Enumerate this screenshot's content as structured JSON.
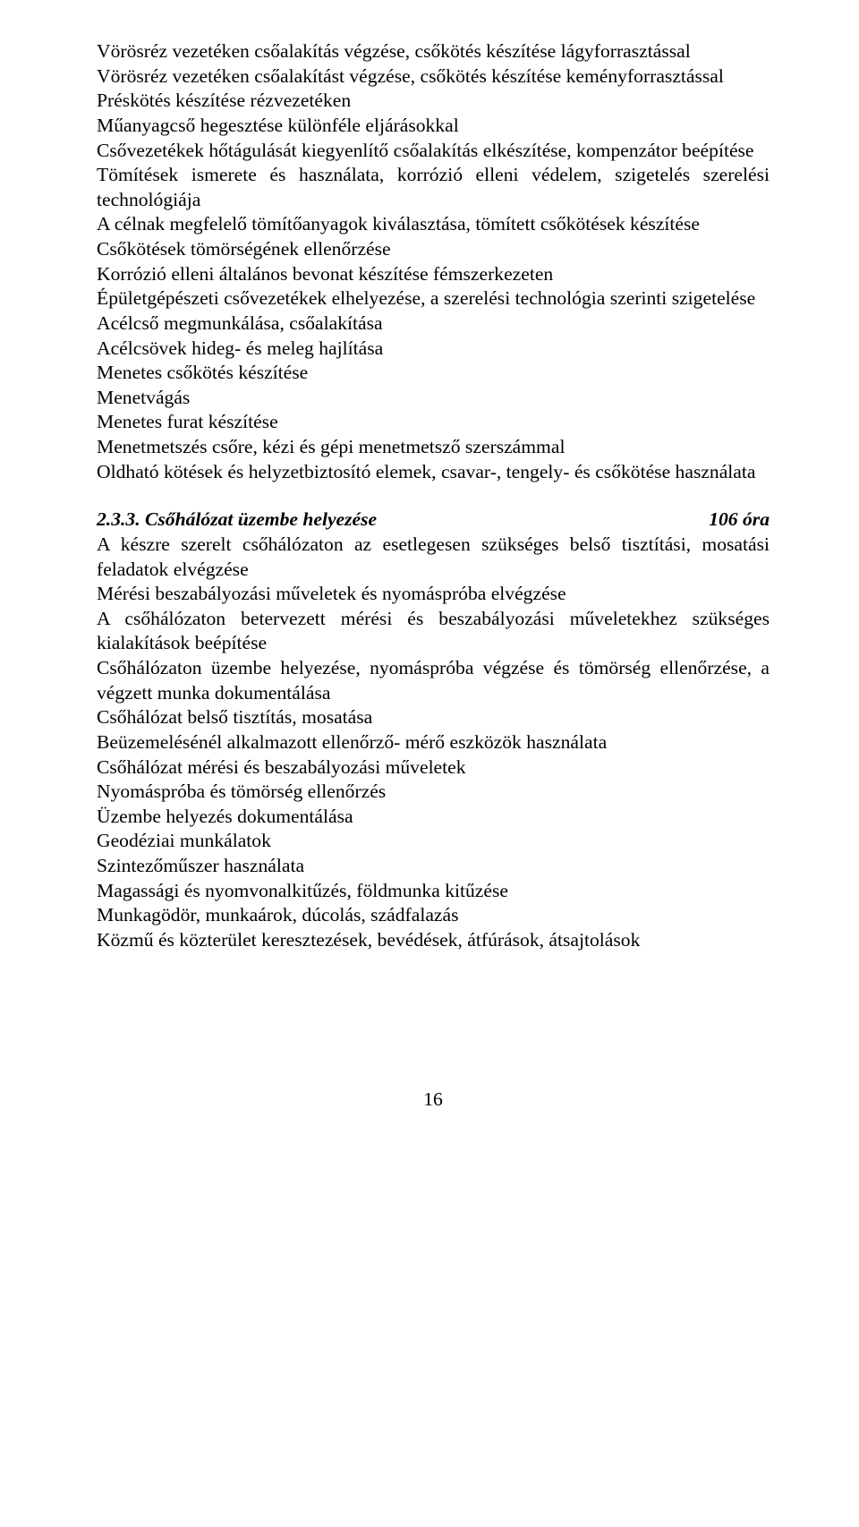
{
  "colors": {
    "background": "#ffffff",
    "text": "#000000"
  },
  "typography": {
    "font_family": "Palatino Linotype, Book Antiqua, Palatino, Georgia, serif",
    "font_size_pt": 16,
    "line_height": 1.28
  },
  "block1": {
    "lines": [
      {
        "text": "Vörösréz vezetéken csőalakítás végzése, csőkötés készítése lágyforrasztással",
        "justify": true
      },
      {
        "text": "Vörösréz   vezetéken   csőalakítást   végzése,   csőkötés   készítése keményforrasztással",
        "justify": true
      },
      {
        "text": "Préskötés készítése rézvezetéken",
        "justify": false
      },
      {
        "text": "Műanyagcső hegesztése különféle eljárásokkal",
        "justify": false
      },
      {
        "text": "Csővezetékek hőtágulását kiegyenlítő csőalakítás elkészítése, kompenzátor beépítése",
        "justify": true
      },
      {
        "text": "Tömítések ismerete és használata, korrózió elleni védelem, szigetelés szerelési technológiája",
        "justify": true
      },
      {
        "text": "A célnak megfelelő tömítőanyagok kiválasztása, tömített csőkötések készítése",
        "justify": true
      },
      {
        "text": "Csőkötések tömörségének ellenőrzése",
        "justify": false
      },
      {
        "text": "Korrózió elleni általános bevonat készítése fémszerkezeten",
        "justify": false
      },
      {
        "text": "Épületgépészeti csővezetékek elhelyezése, a szerelési technológia szerinti szigetelése",
        "justify": true
      },
      {
        "text": "Acélcső megmunkálása, csőalakítása",
        "justify": false
      },
      {
        "text": "Acélcsövek hideg- és meleg hajlítása",
        "justify": false
      },
      {
        "text": "Menetes csőkötés készítése",
        "justify": false
      },
      {
        "text": "Menetvágás",
        "justify": false
      },
      {
        "text": "Menetes furat készítése",
        "justify": false
      },
      {
        "text": "Menetmetszés csőre, kézi és gépi menetmetsző szerszámmal",
        "justify": false
      },
      {
        "text": "Oldható kötések és helyzetbiztosító elemek, csavar-, tengely- és csőkötése használata",
        "justify": true
      }
    ]
  },
  "section2": {
    "heading_title": "2.3.3. Csőhálózat üzembe helyezése",
    "heading_hours": "106 óra",
    "lines": [
      {
        "text": "A készre szerelt csőhálózaton az esetlegesen szükséges belső tisztítási, mosatási feladatok elvégzése",
        "justify": true
      },
      {
        "text": "Mérési beszabályozási műveletek és nyomáspróba elvégzése",
        "justify": false
      },
      {
        "text": "A csőhálózaton betervezett mérési és beszabályozási műveletekhez szükséges kialakítások beépítése",
        "justify": true
      },
      {
        "text": "Csőhálózaton üzembe helyezése, nyomáspróba végzése és tömörség ellenőrzése, a végzett munka dokumentálása",
        "justify": true
      },
      {
        "text": "Csőhálózat belső tisztítás, mosatása",
        "justify": false
      },
      {
        "text": "Beüzemelésénél alkalmazott ellenőrző- mérő eszközök használata",
        "justify": false
      },
      {
        "text": "Csőhálózat mérési és beszabályozási műveletek",
        "justify": false
      },
      {
        "text": "Nyomáspróba és tömörség ellenőrzés",
        "justify": false
      },
      {
        "text": "Üzembe helyezés dokumentálása",
        "justify": false
      },
      {
        "text": "Geodéziai munkálatok",
        "justify": false
      },
      {
        "text": "Szintezőműszer használata",
        "justify": false
      },
      {
        "text": "Magassági és nyomvonalkitűzés, földmunka kitűzése",
        "justify": false
      },
      {
        "text": "Munkagödör, munkaárok, dúcolás, szádfalazás",
        "justify": false
      },
      {
        "text": "Közmű és közterület keresztezések, bevédések, átfúrások, átsajtolások",
        "justify": false
      }
    ]
  },
  "page_number": "16"
}
